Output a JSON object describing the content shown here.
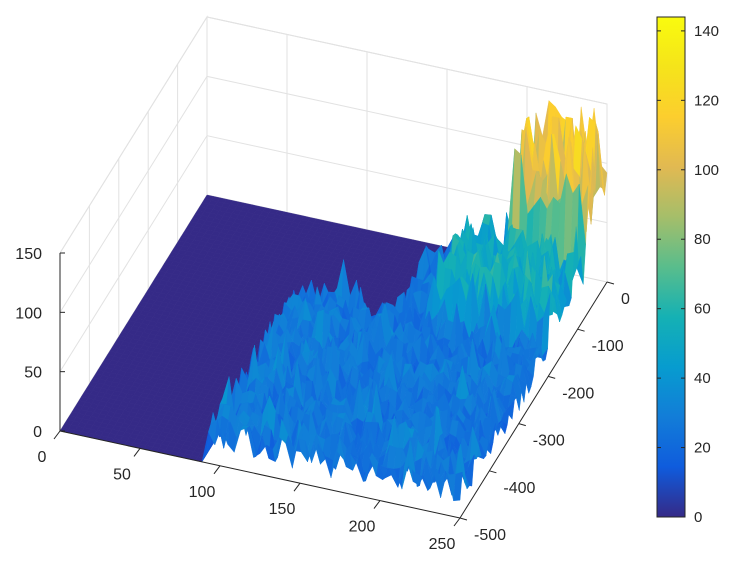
{
  "chart_data": {
    "type": "surface",
    "title": "",
    "xlabel": "",
    "ylabel": "",
    "zlabel": "",
    "xlim": [
      0,
      250
    ],
    "ylim": [
      -500,
      0
    ],
    "zlim": [
      0,
      150
    ],
    "grid": true,
    "colormap": "parula",
    "x_ticks": [
      "0",
      "50",
      "100",
      "150",
      "200",
      "250"
    ],
    "y_ticks": [
      "0",
      "-100",
      "-200",
      "-300",
      "-400",
      "-500"
    ],
    "z_ticks": [
      "0",
      "50",
      "100",
      "150"
    ],
    "colorbar": {
      "min": 0,
      "max": 144,
      "ticks": [
        "0",
        "20",
        "40",
        "60",
        "80",
        "100",
        "120",
        "140"
      ],
      "placement": "right"
    },
    "regions": [
      {
        "x_range": [
          0,
          90
        ],
        "y_range": [
          -500,
          0
        ],
        "z_approx": 0
      },
      {
        "x_range": [
          90,
          250
        ],
        "y_range": [
          -500,
          -200
        ],
        "z_approx": [
          10,
          40
        ]
      },
      {
        "x_range": [
          150,
          250
        ],
        "y_range": [
          -200,
          -60
        ],
        "z_approx": [
          20,
          70
        ]
      },
      {
        "x_range": [
          200,
          250
        ],
        "y_range": [
          -60,
          0
        ],
        "z_approx": [
          60,
          144
        ]
      }
    ],
    "peak": {
      "x": 235,
      "y": -10,
      "z": 144
    }
  }
}
